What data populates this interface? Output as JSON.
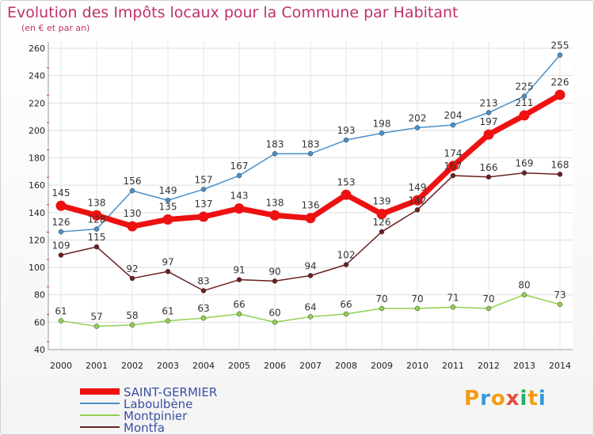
{
  "title": "Evolution des Impôts locaux pour la Commune par Habitant",
  "subtitle": "(en € et par an)",
  "logo": {
    "letters": [
      "P",
      "r",
      "o",
      "x",
      "i",
      "t",
      "i"
    ],
    "colors": [
      "#f39c12",
      "#3498db",
      "#f39c12",
      "#e74c3c",
      "#27ae60",
      "#f39c12",
      "#3498db"
    ]
  },
  "chart_data": {
    "type": "line",
    "x": [
      2000,
      2001,
      2002,
      2003,
      2004,
      2005,
      2006,
      2007,
      2008,
      2009,
      2010,
      2011,
      2012,
      2013,
      2014
    ],
    "ylim": [
      40,
      260
    ],
    "yticks": [
      40,
      60,
      80,
      100,
      120,
      140,
      160,
      180,
      200,
      220,
      240,
      260
    ],
    "grid": true,
    "legend_position": "bottom-left",
    "series": [
      {
        "name": "Laboulbène",
        "color": "#4a90c8",
        "values": [
          126,
          128,
          156,
          149,
          157,
          167,
          183,
          183,
          193,
          198,
          202,
          204,
          213,
          225,
          255
        ]
      },
      {
        "name": "Montpinier",
        "color": "#8fd14f",
        "values": [
          61,
          57,
          58,
          61,
          63,
          66,
          60,
          64,
          66,
          70,
          70,
          71,
          70,
          80,
          73
        ]
      },
      {
        "name": "Montfa",
        "color": "#6b1f1f",
        "values": [
          109,
          115,
          92,
          97,
          83,
          91,
          90,
          94,
          102,
          126,
          142,
          167,
          166,
          169,
          168
        ]
      },
      {
        "name": "SAINT-GERMIER",
        "color": "#ee1111",
        "values": [
          145,
          138,
          130,
          135,
          137,
          143,
          138,
          136,
          153,
          139,
          149,
          174,
          197,
          211,
          226
        ]
      }
    ],
    "legend_order": [
      "SAINT-GERMIER",
      "Laboulbène",
      "Montpinier",
      "Montfa"
    ]
  }
}
